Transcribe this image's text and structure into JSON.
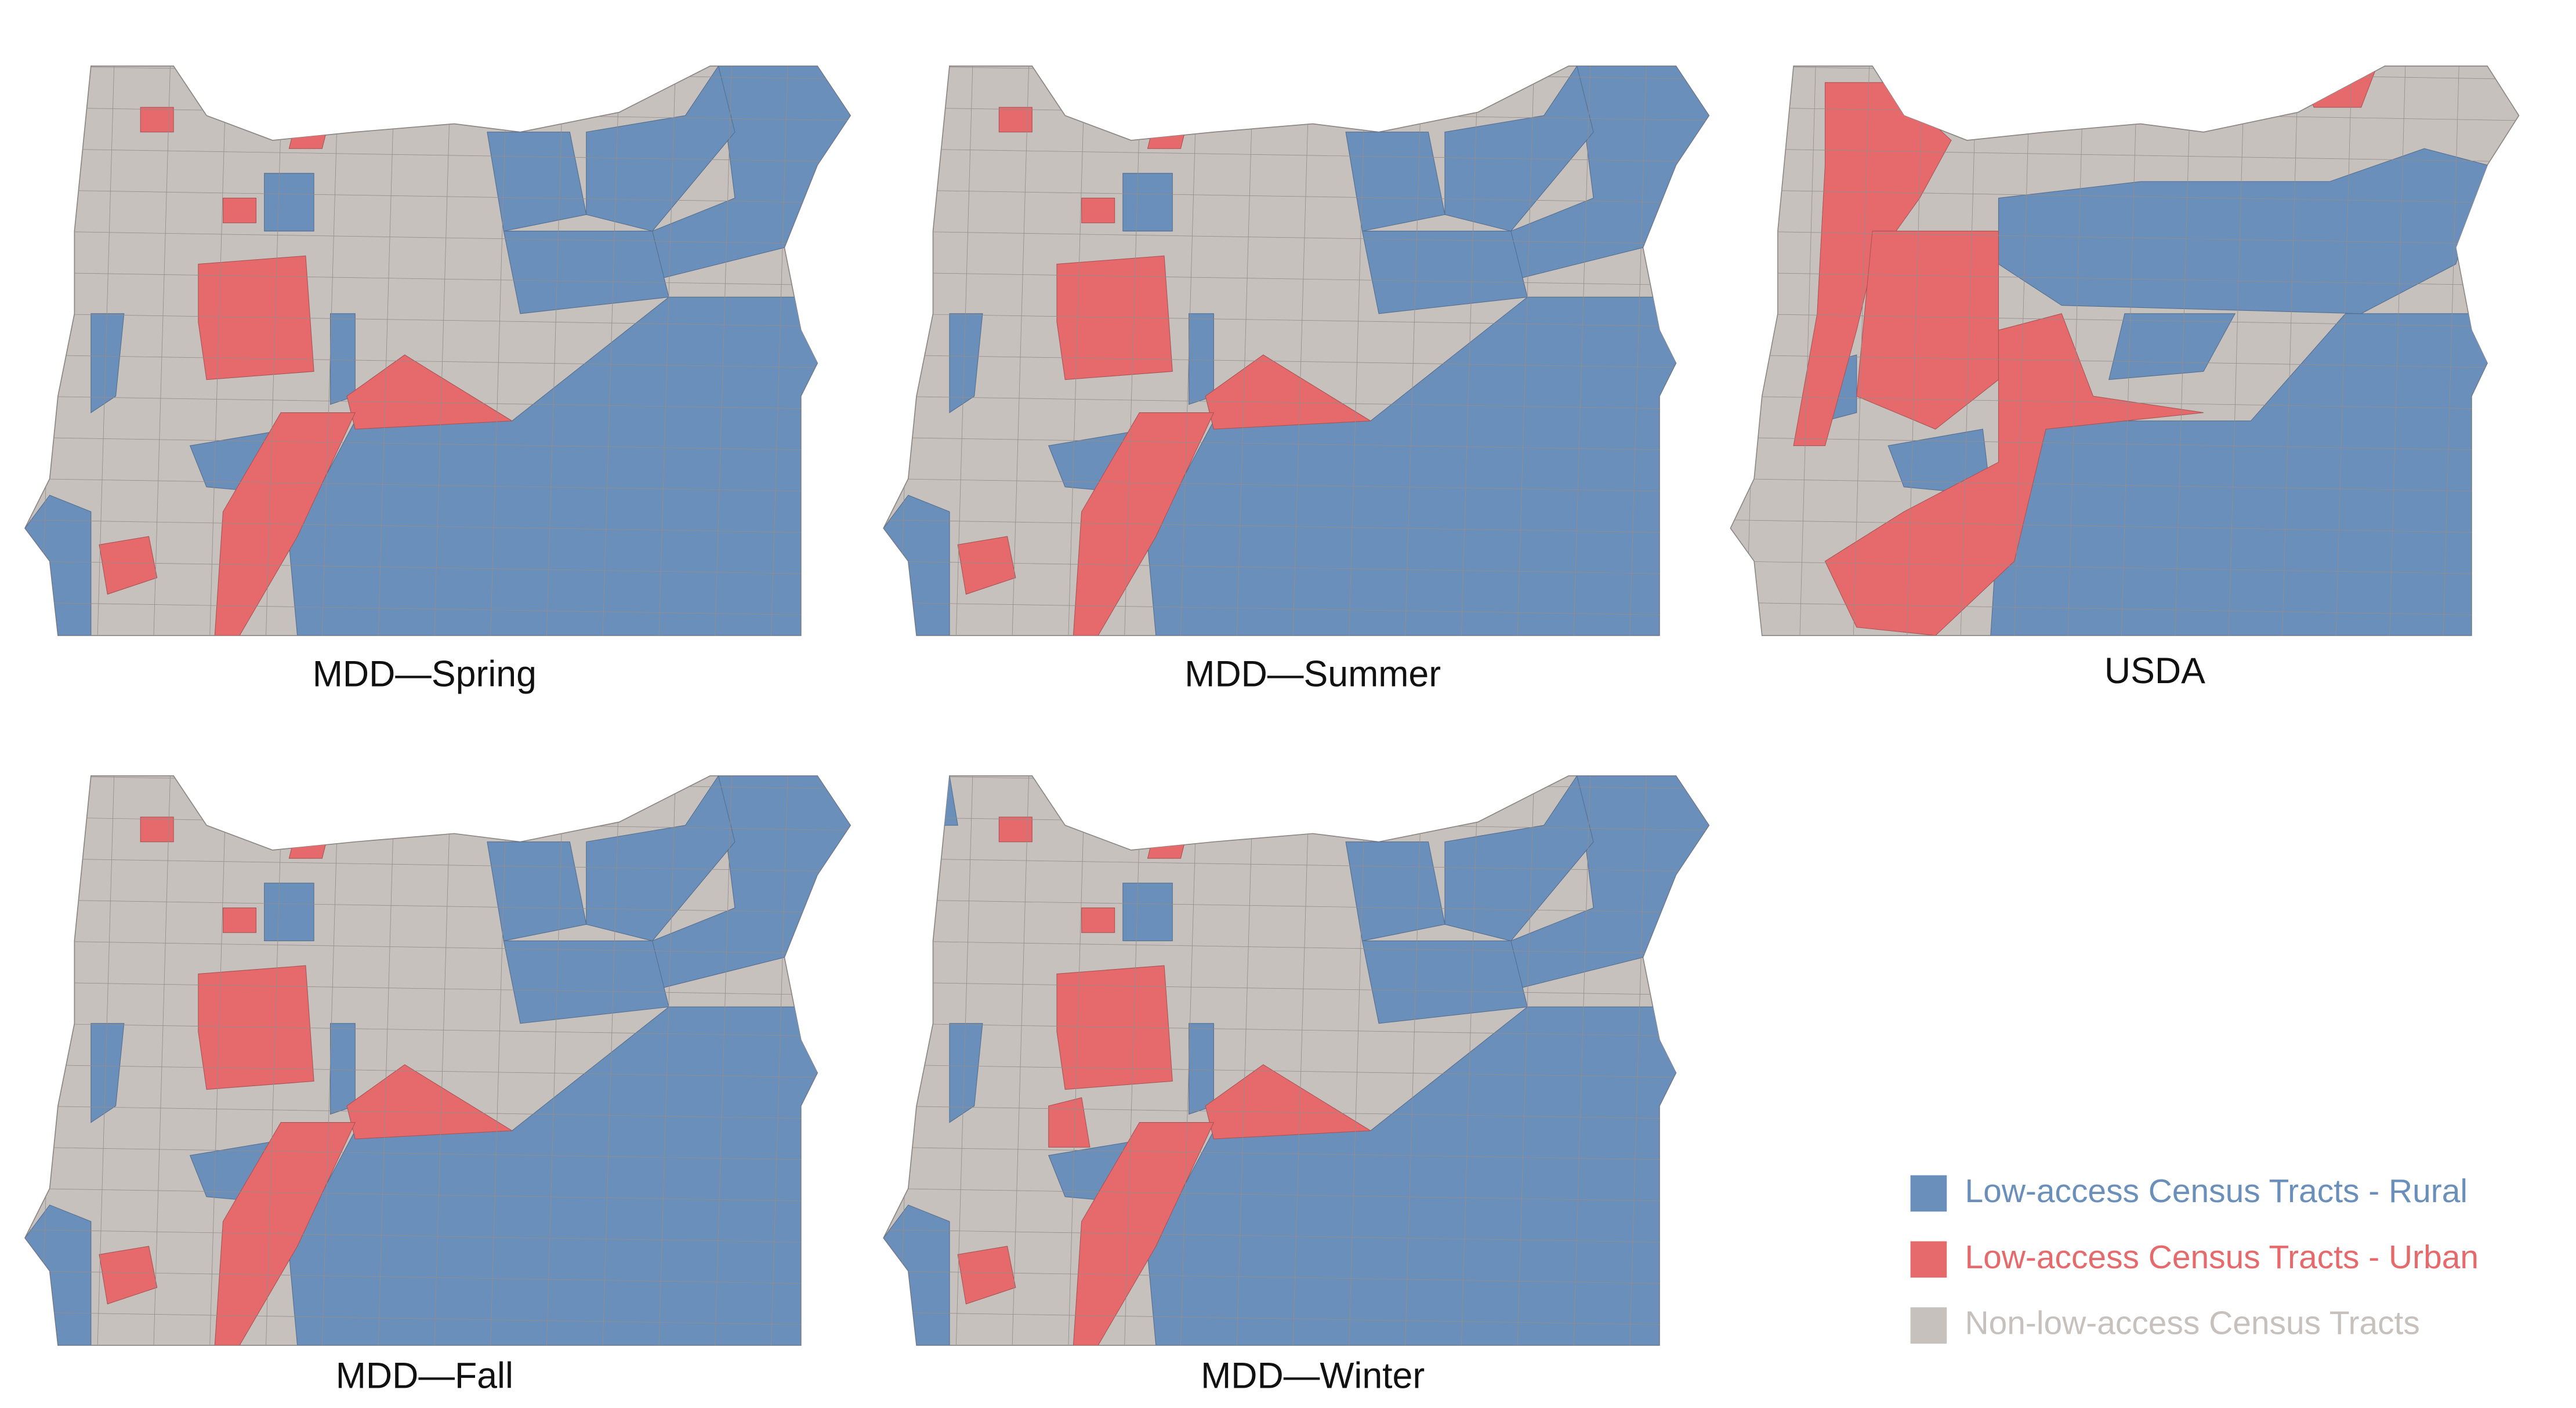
{
  "panels": [
    {
      "label": "MDD—Spring"
    },
    {
      "label": "MDD—Summer"
    },
    {
      "label": "USDA"
    },
    {
      "label": "MDD—Fall"
    },
    {
      "label": "MDD—Winter"
    }
  ],
  "legend": [
    {
      "label": "Low-access Census Tracts - Rural",
      "color": "#6a8fbb"
    },
    {
      "label": "Low-access Census Tracts - Urban",
      "color": "#e66a6c"
    },
    {
      "label": "Non-low-access Census Tracts",
      "color": "#c7c1be"
    }
  ]
}
